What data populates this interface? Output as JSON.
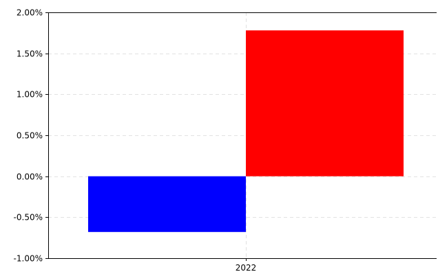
{
  "chart_data": {
    "type": "bar",
    "title": "",
    "xlabel": "",
    "ylabel": "",
    "categories": [
      "2022"
    ],
    "series": [
      {
        "values": [
          -0.0068
        ],
        "color": "#0000ff"
      },
      {
        "values": [
          0.0178
        ],
        "color": "#ff0000"
      }
    ],
    "ylim": [
      -0.01,
      0.02
    ],
    "yticks": [
      -0.01,
      -0.005,
      0.0,
      0.005,
      0.01,
      0.015,
      0.02
    ],
    "ytick_labels": [
      "-1.00%",
      "-0.50%",
      "0.00%",
      "0.50%",
      "1.00%",
      "1.50%",
      "2.00%"
    ],
    "grid": true,
    "legend": "none"
  }
}
